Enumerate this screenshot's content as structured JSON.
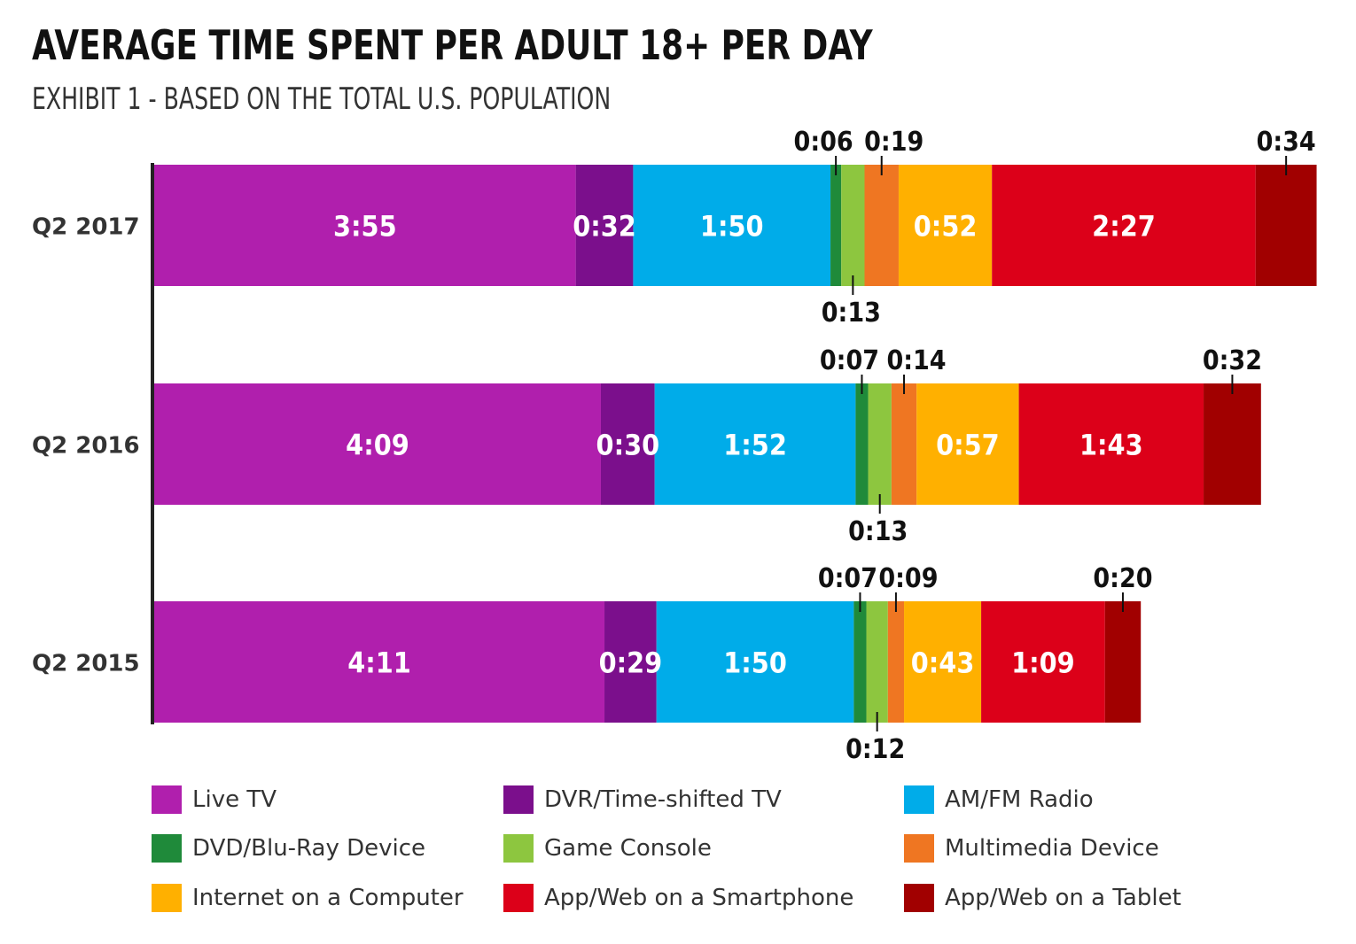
{
  "title": "AVERAGE TIME SPENT PER ADULT 18+ PER DAY",
  "subtitle": "EXHIBIT 1 - BASED ON THE TOTAL U.S. POPULATION",
  "chart_data": {
    "type": "bar",
    "orientation": "horizontal",
    "stacked": true,
    "unit": "h:mm",
    "categories": [
      "Q2 2017",
      "Q2 2016",
      "Q2 2015"
    ],
    "series": [
      {
        "name": "Live TV",
        "color": "#b01fad",
        "values": [
          "3:55",
          "4:09",
          "4:11"
        ]
      },
      {
        "name": "DVR/Time-shifted TV",
        "color": "#7b0f8c",
        "values": [
          "0:32",
          "0:30",
          "0:29"
        ]
      },
      {
        "name": "AM/FM Radio",
        "color": "#00ace9",
        "values": [
          "1:50",
          "1:52",
          "1:50"
        ]
      },
      {
        "name": "DVD/Blu-Ray Device",
        "color": "#1f8a3a",
        "values": [
          "0:06",
          "0:07",
          "0:07"
        ]
      },
      {
        "name": "Game Console",
        "color": "#8dc63f",
        "values": [
          "0:13",
          "0:13",
          "0:12"
        ]
      },
      {
        "name": "Multimedia Device",
        "color": "#ef7622",
        "values": [
          "0:19",
          "0:14",
          "0:09"
        ]
      },
      {
        "name": "Internet on a Computer",
        "color": "#ffb000",
        "values": [
          "0:52",
          "0:57",
          "0:43"
        ]
      },
      {
        "name": "App/Web on a Smartphone",
        "color": "#dc0019",
        "values": [
          "2:27",
          "1:43",
          "1:09"
        ]
      },
      {
        "name": "App/Web on a Tablet",
        "color": "#a10000",
        "values": [
          "0:34",
          "0:32",
          "0:20"
        ]
      }
    ],
    "legend_position": "bottom",
    "grid": false
  }
}
